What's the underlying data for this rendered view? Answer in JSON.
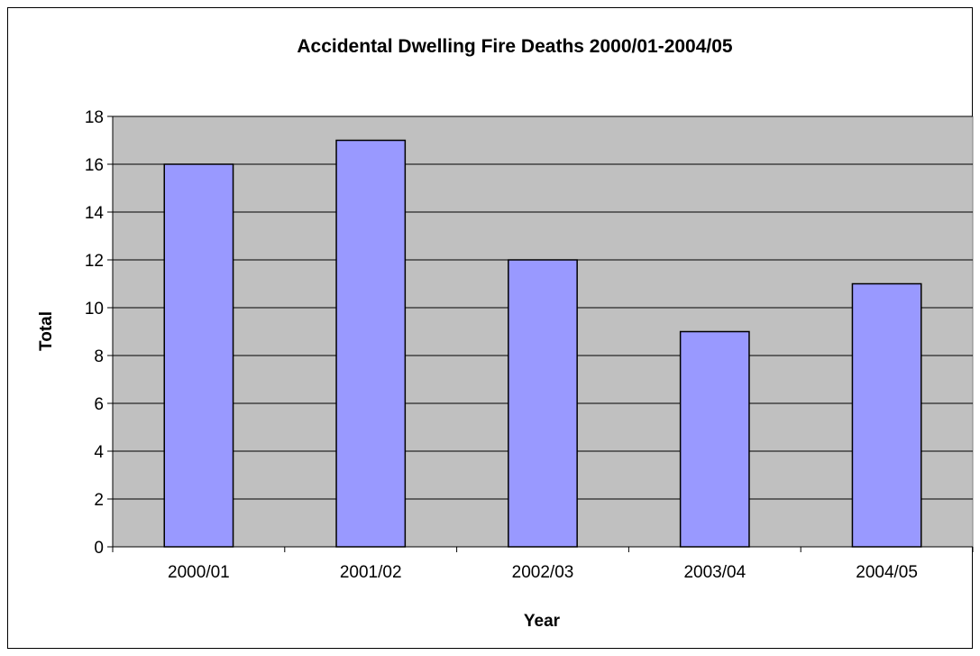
{
  "chart_data": {
    "type": "bar",
    "title": "Accidental Dwelling Fire Deaths 2000/01-2004/05",
    "xlabel": "Year",
    "ylabel": "Total",
    "categories": [
      "2000/01",
      "2001/02",
      "2002/03",
      "2003/04",
      "2004/05"
    ],
    "series": [
      {
        "values": [
          16,
          17,
          12,
          9,
          11
        ]
      }
    ],
    "ylim": [
      0,
      18
    ],
    "yticks": [
      0,
      2,
      4,
      6,
      8,
      10,
      12,
      14,
      16,
      18
    ],
    "grid": true,
    "legend": "none"
  },
  "colors": {
    "plot_background": "#C0C0C0",
    "bar_fill": "#9999FF",
    "bar_stroke": "#000000",
    "gridline": "#000000"
  }
}
